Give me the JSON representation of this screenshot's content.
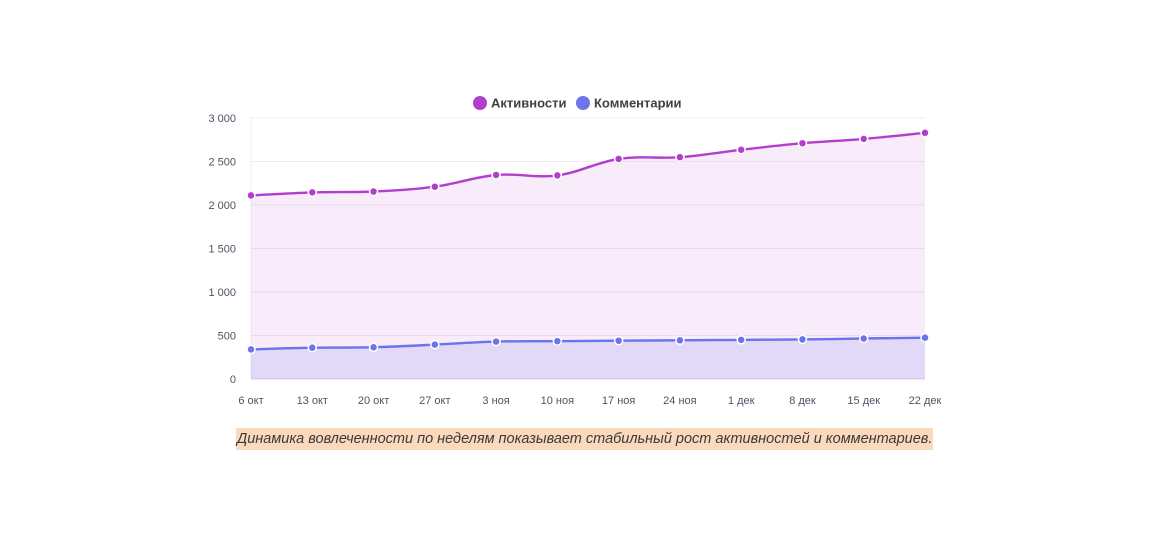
{
  "chart_data": {
    "type": "area",
    "categories": [
      "6 окт",
      "13 окт",
      "20 окт",
      "27 окт",
      "3 ноя",
      "10 ноя",
      "17 ноя",
      "24 ноя",
      "1 дек",
      "8 дек",
      "15 дек",
      "22 дек"
    ],
    "series": [
      {
        "name": "Активности",
        "color": "#b23fcc",
        "values": [
          2110,
          2145,
          2155,
          2210,
          2345,
          2340,
          2530,
          2550,
          2635,
          2710,
          2760,
          2830
        ]
      },
      {
        "name": "Комментарии",
        "color": "#6b74e8",
        "values": [
          340,
          360,
          365,
          395,
          430,
          435,
          440,
          445,
          450,
          455,
          465,
          475
        ]
      }
    ],
    "y_ticks": [
      "0",
      "500",
      "1 000",
      "1 500",
      "2 000",
      "2 500",
      "3 000"
    ],
    "ylim": [
      0,
      3000
    ],
    "grid": true,
    "legend_position": "top-center"
  },
  "caption": "Динамика вовлеченности по неделям показывает стабильный рост активностей и комментариев."
}
